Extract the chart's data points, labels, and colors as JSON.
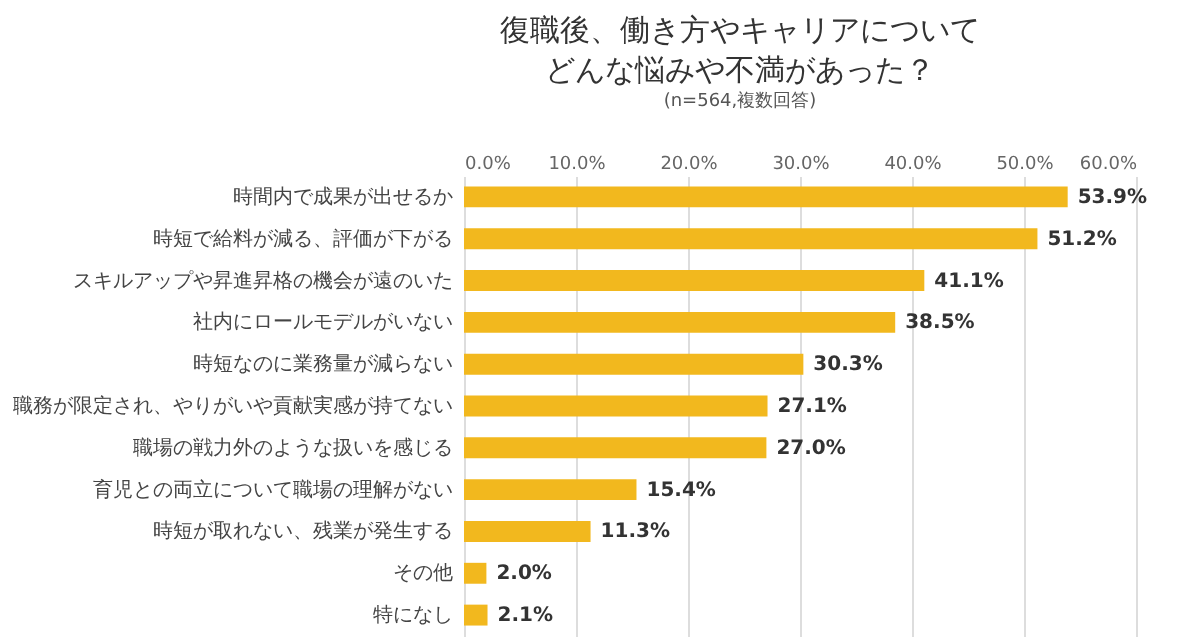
{
  "chart_data": {
    "type": "bar",
    "orientation": "horizontal",
    "title": "復職後、働き方やキャリアについてどんな悩みや不満があった？",
    "subtitle": "(n=564,複数回答)",
    "categories": [
      "時間内で成果が出せるか",
      "時短で給料が減る、評価が下がる",
      "スキルアップや昇進昇格の機会が遠のいた",
      "社内にロールモデルがいない",
      "時短なのに業務量が減らない",
      "職務が限定され、やりがいや貢献実感が持てない",
      "職場の戦力外のような扱いを感じる",
      "育児との両立について職場の理解がない",
      "時短が取れない、残業が発生する",
      "その他",
      "特になし"
    ],
    "values": [
      53.9,
      51.2,
      41.1,
      38.5,
      30.3,
      27.1,
      27.0,
      15.4,
      11.3,
      2.0,
      2.1
    ],
    "value_labels": [
      "53.9%",
      "51.2%",
      "41.1%",
      "38.5%",
      "30.3%",
      "27.1%",
      "27.0%",
      "15.4%",
      "11.3%",
      "2.0%",
      "2.1%"
    ],
    "color": "#f2b81e",
    "xlim": [
      0,
      60
    ],
    "xticks": [
      {
        "value": 0,
        "label": "0.0%"
      },
      {
        "value": 10,
        "label": "10.0%"
      },
      {
        "value": 20,
        "label": "20.0%"
      },
      {
        "value": 30,
        "label": "30.0%"
      },
      {
        "value": 40,
        "label": "40.0%"
      },
      {
        "value": 50,
        "label": "50.0%"
      },
      {
        "value": 60,
        "label": "60.0%"
      }
    ],
    "grid": "x"
  }
}
